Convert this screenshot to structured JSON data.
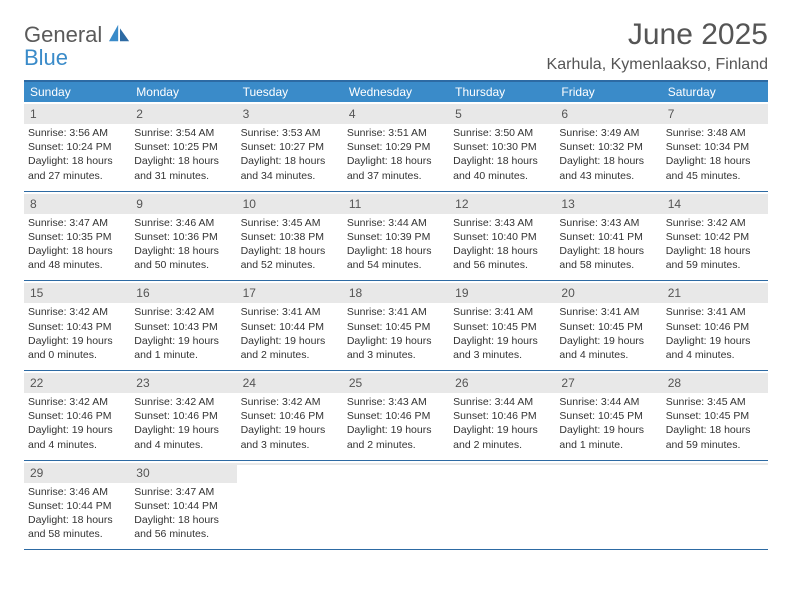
{
  "logo": {
    "word1": "General",
    "word2": "Blue"
  },
  "header": {
    "month_title": "June 2025",
    "location": "Karhula, Kymenlaakso, Finland"
  },
  "styling": {
    "header_bg": "#3a8bc9",
    "border_color": "#2d6aa3",
    "daynum_bg": "#e8e8e8",
    "text_color": "#333333",
    "logo_gray": "#5a5a5a",
    "logo_blue": "#3a8bc9",
    "title_color": "#555555",
    "title_fontsize": 30,
    "weekday_fontsize": 12,
    "body_fontsize": 10.5
  },
  "weekdays": [
    "Sunday",
    "Monday",
    "Tuesday",
    "Wednesday",
    "Thursday",
    "Friday",
    "Saturday"
  ],
  "weeks": [
    [
      {
        "n": "1",
        "sr": "Sunrise: 3:56 AM",
        "ss": "Sunset: 10:24 PM",
        "d1": "Daylight: 18 hours",
        "d2": "and 27 minutes."
      },
      {
        "n": "2",
        "sr": "Sunrise: 3:54 AM",
        "ss": "Sunset: 10:25 PM",
        "d1": "Daylight: 18 hours",
        "d2": "and 31 minutes."
      },
      {
        "n": "3",
        "sr": "Sunrise: 3:53 AM",
        "ss": "Sunset: 10:27 PM",
        "d1": "Daylight: 18 hours",
        "d2": "and 34 minutes."
      },
      {
        "n": "4",
        "sr": "Sunrise: 3:51 AM",
        "ss": "Sunset: 10:29 PM",
        "d1": "Daylight: 18 hours",
        "d2": "and 37 minutes."
      },
      {
        "n": "5",
        "sr": "Sunrise: 3:50 AM",
        "ss": "Sunset: 10:30 PM",
        "d1": "Daylight: 18 hours",
        "d2": "and 40 minutes."
      },
      {
        "n": "6",
        "sr": "Sunrise: 3:49 AM",
        "ss": "Sunset: 10:32 PM",
        "d1": "Daylight: 18 hours",
        "d2": "and 43 minutes."
      },
      {
        "n": "7",
        "sr": "Sunrise: 3:48 AM",
        "ss": "Sunset: 10:34 PM",
        "d1": "Daylight: 18 hours",
        "d2": "and 45 minutes."
      }
    ],
    [
      {
        "n": "8",
        "sr": "Sunrise: 3:47 AM",
        "ss": "Sunset: 10:35 PM",
        "d1": "Daylight: 18 hours",
        "d2": "and 48 minutes."
      },
      {
        "n": "9",
        "sr": "Sunrise: 3:46 AM",
        "ss": "Sunset: 10:36 PM",
        "d1": "Daylight: 18 hours",
        "d2": "and 50 minutes."
      },
      {
        "n": "10",
        "sr": "Sunrise: 3:45 AM",
        "ss": "Sunset: 10:38 PM",
        "d1": "Daylight: 18 hours",
        "d2": "and 52 minutes."
      },
      {
        "n": "11",
        "sr": "Sunrise: 3:44 AM",
        "ss": "Sunset: 10:39 PM",
        "d1": "Daylight: 18 hours",
        "d2": "and 54 minutes."
      },
      {
        "n": "12",
        "sr": "Sunrise: 3:43 AM",
        "ss": "Sunset: 10:40 PM",
        "d1": "Daylight: 18 hours",
        "d2": "and 56 minutes."
      },
      {
        "n": "13",
        "sr": "Sunrise: 3:43 AM",
        "ss": "Sunset: 10:41 PM",
        "d1": "Daylight: 18 hours",
        "d2": "and 58 minutes."
      },
      {
        "n": "14",
        "sr": "Sunrise: 3:42 AM",
        "ss": "Sunset: 10:42 PM",
        "d1": "Daylight: 18 hours",
        "d2": "and 59 minutes."
      }
    ],
    [
      {
        "n": "15",
        "sr": "Sunrise: 3:42 AM",
        "ss": "Sunset: 10:43 PM",
        "d1": "Daylight: 19 hours",
        "d2": "and 0 minutes."
      },
      {
        "n": "16",
        "sr": "Sunrise: 3:42 AM",
        "ss": "Sunset: 10:43 PM",
        "d1": "Daylight: 19 hours",
        "d2": "and 1 minute."
      },
      {
        "n": "17",
        "sr": "Sunrise: 3:41 AM",
        "ss": "Sunset: 10:44 PM",
        "d1": "Daylight: 19 hours",
        "d2": "and 2 minutes."
      },
      {
        "n": "18",
        "sr": "Sunrise: 3:41 AM",
        "ss": "Sunset: 10:45 PM",
        "d1": "Daylight: 19 hours",
        "d2": "and 3 minutes."
      },
      {
        "n": "19",
        "sr": "Sunrise: 3:41 AM",
        "ss": "Sunset: 10:45 PM",
        "d1": "Daylight: 19 hours",
        "d2": "and 3 minutes."
      },
      {
        "n": "20",
        "sr": "Sunrise: 3:41 AM",
        "ss": "Sunset: 10:45 PM",
        "d1": "Daylight: 19 hours",
        "d2": "and 4 minutes."
      },
      {
        "n": "21",
        "sr": "Sunrise: 3:41 AM",
        "ss": "Sunset: 10:46 PM",
        "d1": "Daylight: 19 hours",
        "d2": "and 4 minutes."
      }
    ],
    [
      {
        "n": "22",
        "sr": "Sunrise: 3:42 AM",
        "ss": "Sunset: 10:46 PM",
        "d1": "Daylight: 19 hours",
        "d2": "and 4 minutes."
      },
      {
        "n": "23",
        "sr": "Sunrise: 3:42 AM",
        "ss": "Sunset: 10:46 PM",
        "d1": "Daylight: 19 hours",
        "d2": "and 4 minutes."
      },
      {
        "n": "24",
        "sr": "Sunrise: 3:42 AM",
        "ss": "Sunset: 10:46 PM",
        "d1": "Daylight: 19 hours",
        "d2": "and 3 minutes."
      },
      {
        "n": "25",
        "sr": "Sunrise: 3:43 AM",
        "ss": "Sunset: 10:46 PM",
        "d1": "Daylight: 19 hours",
        "d2": "and 2 minutes."
      },
      {
        "n": "26",
        "sr": "Sunrise: 3:44 AM",
        "ss": "Sunset: 10:46 PM",
        "d1": "Daylight: 19 hours",
        "d2": "and 2 minutes."
      },
      {
        "n": "27",
        "sr": "Sunrise: 3:44 AM",
        "ss": "Sunset: 10:45 PM",
        "d1": "Daylight: 19 hours",
        "d2": "and 1 minute."
      },
      {
        "n": "28",
        "sr": "Sunrise: 3:45 AM",
        "ss": "Sunset: 10:45 PM",
        "d1": "Daylight: 18 hours",
        "d2": "and 59 minutes."
      }
    ],
    [
      {
        "n": "29",
        "sr": "Sunrise: 3:46 AM",
        "ss": "Sunset: 10:44 PM",
        "d1": "Daylight: 18 hours",
        "d2": "and 58 minutes."
      },
      {
        "n": "30",
        "sr": "Sunrise: 3:47 AM",
        "ss": "Sunset: 10:44 PM",
        "d1": "Daylight: 18 hours",
        "d2": "and 56 minutes."
      },
      {
        "empty": true
      },
      {
        "empty": true
      },
      {
        "empty": true
      },
      {
        "empty": true
      },
      {
        "empty": true
      }
    ]
  ]
}
